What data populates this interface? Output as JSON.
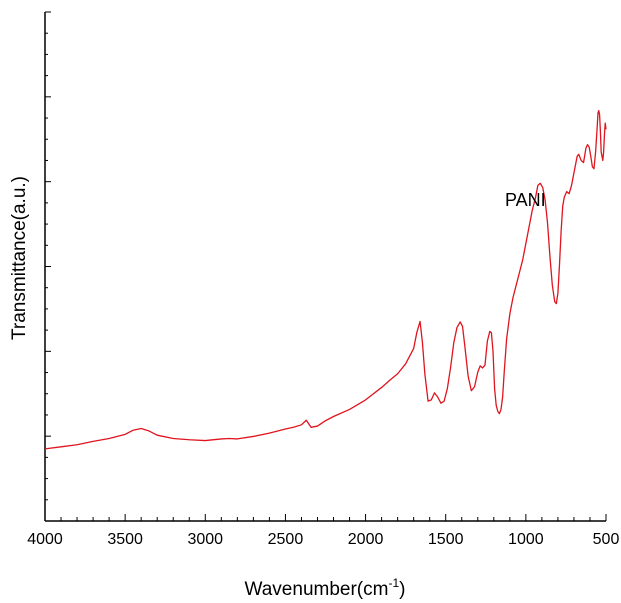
{
  "chart_data": {
    "type": "line",
    "title": "",
    "xlabel": "Wavenumber(cm",
    "xlabel_sup": "-1",
    "xlabel_suffix": ")",
    "ylabel": "Transmittance(a.u.)",
    "xlim": [
      4000,
      500
    ],
    "x_reversed": true,
    "ylim": [
      0,
      100
    ],
    "y_tick_labels": false,
    "x_ticks": [
      4000,
      3500,
      3000,
      2500,
      2000,
      1500,
      1000,
      500
    ],
    "x_tick_labels": [
      "4000",
      "3500",
      "3000",
      "2500",
      "2000",
      "1500",
      "1000",
      "500"
    ],
    "grid": false,
    "legend": "none",
    "annotation": "PANI",
    "color": "#e0141e",
    "series": [
      {
        "name": "PANI",
        "x": [
          4000,
          3900,
          3800,
          3700,
          3600,
          3500,
          3450,
          3400,
          3350,
          3300,
          3200,
          3100,
          3000,
          2900,
          2850,
          2800,
          2700,
          2600,
          2500,
          2450,
          2400,
          2370,
          2340,
          2300,
          2250,
          2200,
          2100,
          2000,
          1900,
          1850,
          1800,
          1750,
          1700,
          1680,
          1660,
          1645,
          1630,
          1610,
          1590,
          1570,
          1550,
          1530,
          1510,
          1490,
          1470,
          1450,
          1430,
          1410,
          1395,
          1380,
          1360,
          1340,
          1320,
          1300,
          1285,
          1270,
          1255,
          1240,
          1225,
          1215,
          1205,
          1195,
          1185,
          1175,
          1165,
          1155,
          1145,
          1135,
          1120,
          1100,
          1080,
          1060,
          1040,
          1020,
          1000,
          980,
          960,
          940,
          925,
          910,
          895,
          880,
          865,
          850,
          835,
          820,
          810,
          800,
          790,
          780,
          770,
          760,
          745,
          730,
          715,
          700,
          690,
          680,
          670,
          655,
          640,
          625,
          615,
          605,
          595,
          585,
          575,
          565,
          555,
          550,
          545,
          540,
          535,
          530,
          525,
          520,
          515,
          510,
          505,
          500
        ],
        "y": [
          7.5,
          8.0,
          8.5,
          9.3,
          10.0,
          11.0,
          12.0,
          12.4,
          11.8,
          10.8,
          10.0,
          9.7,
          9.5,
          9.9,
          10.0,
          9.9,
          10.5,
          11.3,
          12.3,
          12.7,
          13.3,
          14.4,
          12.7,
          13.0,
          14.3,
          15.3,
          17.0,
          19.3,
          22.3,
          24.0,
          25.6,
          28.0,
          31.7,
          35.6,
          38.2,
          33.0,
          25.5,
          19.0,
          19.3,
          21.0,
          20.0,
          18.5,
          19.0,
          22.0,
          27.0,
          33.0,
          36.7,
          38.1,
          37.0,
          32.0,
          25.0,
          21.5,
          22.5,
          26.0,
          27.5,
          27.0,
          27.7,
          33.5,
          35.8,
          35.5,
          31.0,
          22.0,
          18.0,
          16.5,
          16.0,
          17.0,
          20.0,
          26.0,
          34.0,
          40.0,
          44.0,
          47.0,
          50.0,
          53.0,
          57.0,
          61.0,
          65.0,
          68.0,
          71.0,
          71.5,
          70.5,
          67.5,
          62.0,
          54.0,
          47.0,
          43.0,
          42.5,
          45.0,
          52.0,
          60.0,
          66.0,
          68.2,
          69.5,
          69.0,
          71.0,
          74.0,
          76.0,
          78.0,
          78.5,
          77.0,
          76.5,
          80.0,
          80.8,
          80.2,
          78.0,
          75.5,
          75.0,
          79.0,
          85.0,
          88.5,
          89.0,
          88.0,
          84.0,
          79.0,
          78.0,
          77.0,
          79.0,
          83.0,
          86.0,
          84.5
        ]
      }
    ]
  }
}
